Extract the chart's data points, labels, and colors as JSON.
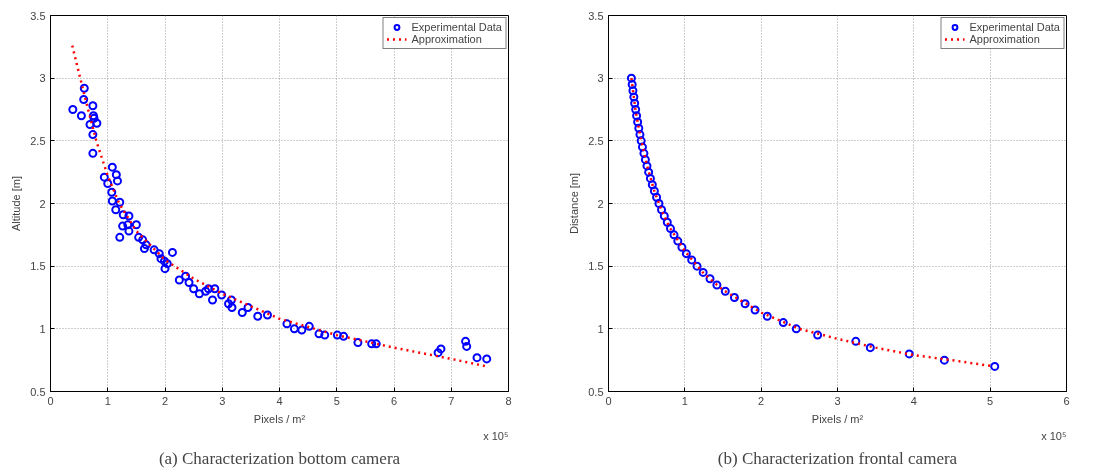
{
  "chart_data": [
    {
      "type": "scatter",
      "title": "(a) Characterization bottom camera",
      "xlabel": "Pixels / m²",
      "ylabel": "Altitude [m]",
      "annotations": [
        "x 10⁵"
      ],
      "xlim": [
        0,
        8
      ],
      "xticks": [
        0,
        1,
        2,
        3,
        4,
        5,
        6,
        7,
        8
      ],
      "ylim": [
        0.5,
        3.5
      ],
      "yticks": [
        0.5,
        1,
        1.5,
        2,
        2.5,
        3,
        3.5
      ],
      "grid": true,
      "legend": "top right",
      "series": [
        {
          "name": "Experimental Data",
          "marker": "circle",
          "color": "#0000ff",
          "x": [
            0.39,
            0.54,
            0.58,
            0.59,
            0.74,
            0.75,
            0.76,
            0.81,
            0.69,
            0.74,
            0.74,
            0.94,
            1.08,
            1.15,
            1.17,
            1.0,
            1.07,
            1.08,
            1.21,
            1.14,
            1.27,
            1.37,
            1.26,
            1.35,
            1.37,
            1.5,
            1.21,
            1.54,
            1.61,
            1.67,
            1.64,
            1.81,
            1.9,
            2.13,
            1.99,
            2.0,
            2.04,
            1.93,
            2.25,
            2.36,
            2.42,
            2.5,
            2.6,
            2.71,
            2.76,
            2.87,
            2.83,
            2.99,
            3.11,
            3.17,
            3.16,
            3.35,
            3.45,
            3.62,
            3.79,
            4.13,
            4.26,
            4.39,
            4.52,
            4.69,
            4.79,
            5.01,
            5.12,
            5.37,
            5.61,
            5.69,
            6.77,
            6.82,
            7.25,
            7.27,
            7.45,
            7.62
          ],
          "values": [
            2.75,
            2.7,
            2.83,
            2.92,
            2.78,
            2.7,
            2.68,
            2.64,
            2.63,
            2.55,
            2.4,
            2.21,
            2.29,
            2.23,
            2.18,
            2.16,
            2.09,
            2.02,
            2.01,
            1.95,
            1.91,
            1.9,
            1.82,
            1.83,
            1.78,
            1.83,
            1.73,
            1.73,
            1.71,
            1.67,
            1.64,
            1.63,
            1.6,
            1.61,
            1.54,
            1.48,
            1.52,
            1.56,
            1.39,
            1.42,
            1.37,
            1.32,
            1.28,
            1.3,
            1.32,
            1.32,
            1.23,
            1.27,
            1.2,
            1.17,
            1.23,
            1.13,
            1.17,
            1.1,
            1.11,
            1.04,
            1.0,
            0.99,
            1.02,
            0.96,
            0.95,
            0.95,
            0.94,
            0.89,
            0.88,
            0.88,
            0.81,
            0.84,
            0.9,
            0.86,
            0.77,
            0.76
          ]
        },
        {
          "name": "Approximation",
          "type": "line",
          "line_style": "dotted",
          "color": "#ff0000",
          "x": [
            0.38,
            0.6,
            0.8,
            1.0,
            1.2,
            1.5,
            2.0,
            2.5,
            3.0,
            4.0,
            5.0,
            6.0,
            7.0,
            7.62
          ],
          "values": [
            3.26,
            2.85,
            2.5,
            2.22,
            2.0,
            1.78,
            1.55,
            1.4,
            1.28,
            1.08,
            0.95,
            0.85,
            0.76,
            0.7
          ]
        }
      ]
    },
    {
      "type": "scatter",
      "title": "(b) Characterization frontal camera",
      "xlabel": "Pixels / m²",
      "ylabel": "Distance [m]",
      "annotations": [
        "x 10⁵"
      ],
      "xlim": [
        0,
        6
      ],
      "xticks": [
        0,
        1,
        2,
        3,
        4,
        5,
        6
      ],
      "ylim": [
        0.5,
        3.5
      ],
      "yticks": [
        0.5,
        1,
        1.5,
        2,
        2.5,
        3,
        3.5
      ],
      "grid": true,
      "legend": "top right",
      "series": [
        {
          "name": "Experimental Data",
          "marker": "circle",
          "color": "#0000ff",
          "x": [
            0.3,
            0.31,
            0.32,
            0.332,
            0.343,
            0.356,
            0.368,
            0.382,
            0.397,
            0.412,
            0.428,
            0.445,
            0.464,
            0.483,
            0.504,
            0.526,
            0.549,
            0.574,
            0.601,
            0.63,
            0.661,
            0.695,
            0.731,
            0.77,
            0.812,
            0.858,
            0.908,
            0.962,
            1.02,
            1.09,
            1.16,
            1.24,
            1.33,
            1.42,
            1.53,
            1.65,
            1.79,
            1.92,
            2.08,
            2.29,
            2.46,
            2.74,
            3.24,
            3.43,
            3.94,
            4.4,
            5.06
          ],
          "values": [
            3.0,
            2.95,
            2.9,
            2.85,
            2.8,
            2.75,
            2.7,
            2.65,
            2.6,
            2.55,
            2.5,
            2.45,
            2.4,
            2.35,
            2.3,
            2.25,
            2.2,
            2.15,
            2.1,
            2.05,
            2.0,
            1.95,
            1.9,
            1.85,
            1.8,
            1.75,
            1.7,
            1.65,
            1.6,
            1.55,
            1.5,
            1.45,
            1.4,
            1.35,
            1.3,
            1.25,
            1.2,
            1.15,
            1.1,
            1.05,
            1.0,
            0.95,
            0.9,
            0.85,
            0.8,
            0.75,
            0.7
          ]
        },
        {
          "name": "Approximation",
          "type": "line",
          "line_style": "dotted",
          "color": "#ff0000",
          "x": [
            0.3,
            0.35,
            0.4,
            0.5,
            0.6,
            0.7,
            0.8,
            1.0,
            1.25,
            1.5,
            2.0,
            2.5,
            3.0,
            3.5,
            4.0,
            4.5,
            5.05
          ],
          "values": [
            3.0,
            2.76,
            2.59,
            2.31,
            2.1,
            1.94,
            1.81,
            1.62,
            1.44,
            1.31,
            1.13,
            1.0,
            0.92,
            0.85,
            0.79,
            0.75,
            0.7
          ]
        }
      ]
    }
  ]
}
